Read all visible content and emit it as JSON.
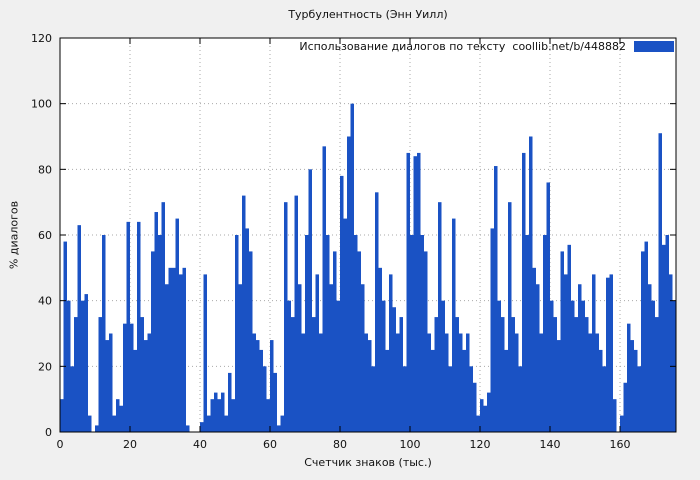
{
  "title": "Турбулентность (Энн Уилл)",
  "legend": {
    "label": "Использование диалогов по тексту  coollib.net/b/448882"
  },
  "colors": {
    "background": "#f0f0f0",
    "plot_background": "#ffffff",
    "series": "#1a52c4",
    "grid": "#aaaaaa"
  },
  "chart_data": {
    "type": "area",
    "title": "Турбулентность (Энн Уилл)",
    "xlabel": "Счетчик знаков (тыс.)",
    "ylabel": "% диалогов",
    "legend": "Использование диалогов по тексту  coollib.net/b/448882",
    "legend_position": "top-right",
    "grid": true,
    "xlim": [
      0,
      176
    ],
    "ylim": [
      0,
      120
    ],
    "x_ticks": [
      0,
      20,
      40,
      60,
      80,
      100,
      120,
      140,
      160
    ],
    "y_ticks": [
      0,
      20,
      40,
      60,
      80,
      100,
      120
    ],
    "series_color": "#1a52c4",
    "x_start": 0,
    "x_step": 1,
    "values": [
      10,
      58,
      40,
      20,
      35,
      63,
      40,
      42,
      5,
      0,
      2,
      35,
      60,
      28,
      30,
      5,
      10,
      8,
      33,
      64,
      33,
      25,
      64,
      35,
      28,
      30,
      55,
      67,
      60,
      70,
      45,
      50,
      50,
      65,
      48,
      50,
      2,
      0,
      0,
      0,
      3,
      48,
      5,
      10,
      12,
      10,
      12,
      5,
      18,
      10,
      60,
      45,
      72,
      62,
      55,
      30,
      28,
      25,
      20,
      10,
      28,
      18,
      2,
      5,
      70,
      40,
      35,
      72,
      45,
      30,
      60,
      80,
      35,
      48,
      30,
      87,
      60,
      45,
      55,
      40,
      78,
      65,
      90,
      100,
      60,
      55,
      45,
      30,
      28,
      20,
      73,
      50,
      40,
      25,
      48,
      38,
      30,
      35,
      20,
      85,
      60,
      84,
      85,
      60,
      55,
      30,
      25,
      35,
      70,
      40,
      30,
      20,
      65,
      35,
      30,
      25,
      30,
      20,
      15,
      5,
      10,
      8,
      12,
      62,
      81,
      40,
      35,
      25,
      70,
      35,
      30,
      20,
      85,
      60,
      90,
      50,
      45,
      30,
      60,
      76,
      40,
      35,
      28,
      55,
      48,
      57,
      40,
      35,
      45,
      40,
      35,
      30,
      48,
      30,
      25,
      20,
      47,
      48,
      10,
      0,
      5,
      15,
      33,
      28,
      25,
      20,
      55,
      58,
      45,
      40,
      35,
      91,
      57,
      60,
      48,
      40
    ]
  }
}
